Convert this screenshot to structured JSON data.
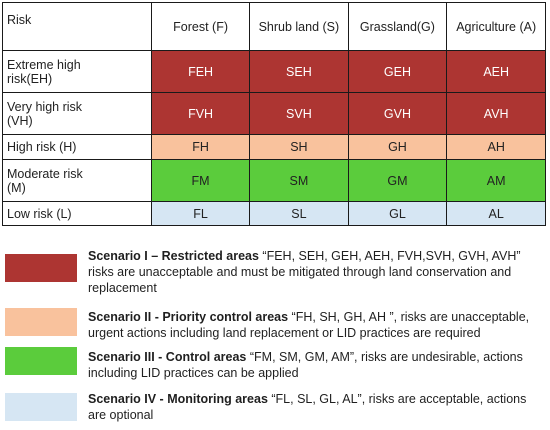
{
  "colors": {
    "extreme": "#ad3532",
    "very_high": "#ad3532",
    "high": "#f9c29d",
    "moderate": "#5bcc3c",
    "low": "#d6e6f3"
  },
  "table": {
    "corner": "Risk",
    "columns": [
      "Forest  (F)",
      "Shrub land (S)",
      "Grassland(G)",
      "Agriculture (A)"
    ],
    "rows": [
      {
        "label_line1": "Extreme high",
        "label_line2": "risk(EH)",
        "level": "extreme",
        "cells": [
          "FEH",
          "SEH",
          "GEH",
          "AEH"
        ]
      },
      {
        "label_line1": "Very high risk",
        "label_line2": "(VH)",
        "level": "very_high",
        "cells": [
          "FVH",
          "SVH",
          "GVH",
          "AVH"
        ]
      },
      {
        "label_line1": "High risk (H)",
        "label_line2": "",
        "level": "high",
        "cells": [
          "FH",
          "SH",
          "GH",
          "AH"
        ]
      },
      {
        "label_line1": "Moderate risk",
        "label_line2": "(M)",
        "level": "moderate",
        "cells": [
          "FM",
          "SM",
          "GM",
          "AM"
        ]
      },
      {
        "label_line1": "Low risk (L)",
        "label_line2": "",
        "level": "low",
        "cells": [
          "FL",
          "SL",
          "GL",
          "AL"
        ]
      }
    ]
  },
  "legend": [
    {
      "level": "extreme",
      "bold": "Scenario I – Restricted areas",
      "text": " “FEH, SEH, GEH, AEH, FVH,SVH, GVH, AVH” risks are unacceptable and must be mitigated through land conservation and replacement"
    },
    {
      "level": "high",
      "bold": "Scenario II - Priority control areas",
      "text": " “FH, SH, GH, AH ”, risks are unacceptable, urgent actions including land replacement or LID practices are required"
    },
    {
      "level": "moderate",
      "bold": "Scenario III - Control areas",
      "text": " “FM, SM, GM, AM”, risks are undesirable, actions including LID practices can be applied"
    },
    {
      "level": "low",
      "bold": "Scenario IV - Monitoring areas",
      "text": " “FL, SL, GL, AL”, risks are  acceptable, actions are optional"
    }
  ]
}
